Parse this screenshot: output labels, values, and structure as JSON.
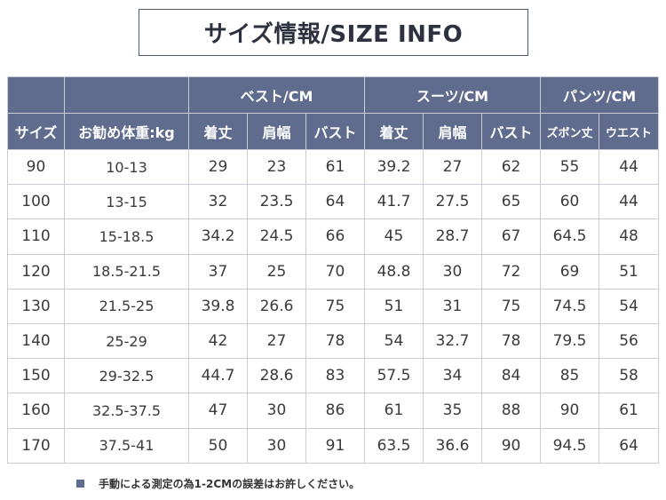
{
  "title": "サイズ情報/SIZE INFO",
  "header": {
    "groups": [
      "ベスト/CM",
      "スーツ/CM",
      "パンツ/CM"
    ],
    "columns": [
      "サイズ",
      "お勧め体重:kg",
      "着丈",
      "肩幅",
      "バスト",
      "着丈",
      "肩幅",
      "バスト",
      "ズボン丈",
      "ウエスト"
    ]
  },
  "rows": [
    [
      "90",
      "10-13",
      "29",
      "23",
      "61",
      "39.2",
      "27",
      "62",
      "55",
      "44"
    ],
    [
      "100",
      "13-15",
      "32",
      "23.5",
      "64",
      "41.7",
      "27.5",
      "65",
      "60",
      "44"
    ],
    [
      "110",
      "15-18.5",
      "34.2",
      "24.5",
      "66",
      "45",
      "28.7",
      "67",
      "64.5",
      "48"
    ],
    [
      "120",
      "18.5-21.5",
      "37",
      "25",
      "70",
      "48.8",
      "30",
      "72",
      "69",
      "51"
    ],
    [
      "130",
      "21.5-25",
      "39.8",
      "26.6",
      "75",
      "51",
      "31",
      "75",
      "74.5",
      "54"
    ],
    [
      "140",
      "25-29",
      "42",
      "27",
      "78",
      "54",
      "32.7",
      "78",
      "79.5",
      "56"
    ],
    [
      "150",
      "29-32.5",
      "44.7",
      "28.6",
      "83",
      "57.5",
      "34",
      "84",
      "85",
      "58"
    ],
    [
      "160",
      "32.5-37.5",
      "47",
      "30",
      "86",
      "61",
      "35",
      "88",
      "90",
      "61"
    ],
    [
      "170",
      "37.5-41",
      "50",
      "30",
      "91",
      "63.5",
      "36.6",
      "90",
      "94.5",
      "64"
    ]
  ],
  "note": "手動による測定の為1-2CMの誤差はお許しください。",
  "colors": {
    "header_bg": "#5f6c8d",
    "title_border": "#4f5a74"
  }
}
